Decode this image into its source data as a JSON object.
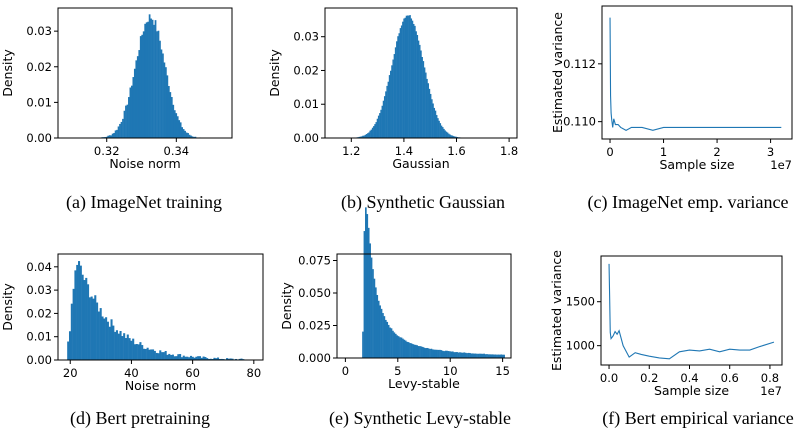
{
  "chart_data": [
    {
      "id": "a",
      "type": "histogram",
      "caption": "(a) ImageNet training",
      "xlabel": "Noise norm",
      "ylabel": "Density",
      "xlim": [
        0.306,
        0.356
      ],
      "ylim": [
        0,
        0.0365
      ],
      "xticks": [
        0.32,
        0.34
      ],
      "xtick_labels": [
        "0.32",
        "0.34"
      ],
      "yticks": [
        0,
        0.01,
        0.02,
        0.03
      ],
      "ytick_labels": [
        "0.00",
        "0.01",
        "0.02",
        "0.03"
      ],
      "distribution": {
        "kind": "gauss",
        "x0": 0.3155,
        "x1": 0.3495,
        "mu": 0.3325,
        "sigma": 0.0042,
        "peak": 0.034,
        "noise": 0.0014,
        "bins": 80
      }
    },
    {
      "id": "b",
      "type": "histogram",
      "caption": "(b) Synthetic Gaussian",
      "xlabel": "Gaussian",
      "ylabel": "Density",
      "xlim": [
        1.1,
        1.83
      ],
      "ylim": [
        0,
        0.0385
      ],
      "xticks": [
        1.2,
        1.4,
        1.6,
        1.8
      ],
      "xtick_labels": [
        "1.2",
        "1.4",
        "1.6",
        "1.8"
      ],
      "yticks": [
        0,
        0.01,
        0.02,
        0.03
      ],
      "ytick_labels": [
        "0.00",
        "0.01",
        "0.02",
        "0.03"
      ],
      "distribution": {
        "kind": "gauss",
        "x0": 1.2,
        "x1": 1.66,
        "mu": 1.415,
        "sigma": 0.06,
        "peak": 0.0365,
        "noise": 0.0004,
        "bins": 100
      }
    },
    {
      "id": "c",
      "type": "line",
      "caption": "(c) ImageNet emp. variance",
      "xlabel": "Sample size",
      "ylabel": "Estimated variance",
      "x_offset_label": "1e7",
      "xlim": [
        -0.15,
        3.4
      ],
      "ylim": [
        0.1094,
        0.114
      ],
      "xticks": [
        0,
        1,
        2,
        3
      ],
      "xtick_labels": [
        "0",
        "1",
        "2",
        "3"
      ],
      "yticks": [
        0.11,
        0.112
      ],
      "ytick_labels": [
        "0.110",
        "0.112"
      ],
      "x": [
        0.0,
        0.01,
        0.02,
        0.03,
        0.05,
        0.07,
        0.1,
        0.15,
        0.2,
        0.3,
        0.4,
        0.6,
        0.8,
        1.0,
        1.3,
        1.6,
        2.0,
        2.4,
        2.8,
        3.2
      ],
      "y": [
        0.1136,
        0.1109,
        0.1103,
        0.1101,
        0.1098,
        0.1101,
        0.1099,
        0.1099,
        0.1098,
        0.1097,
        0.1098,
        0.1098,
        0.1097,
        0.1098,
        0.1098,
        0.1098,
        0.1098,
        0.1098,
        0.1098,
        0.1098
      ]
    },
    {
      "id": "d",
      "type": "histogram",
      "caption": "(d) Bert pretraining",
      "xlabel": "Noise norm",
      "ylabel": "Density",
      "xlim": [
        16,
        83
      ],
      "ylim": [
        0,
        0.0455
      ],
      "xticks": [
        20,
        40,
        60,
        80
      ],
      "xtick_labels": [
        "20",
        "40",
        "60",
        "80"
      ],
      "yticks": [
        0,
        0.01,
        0.02,
        0.03,
        0.04
      ],
      "ytick_labels": [
        "0.00",
        "0.01",
        "0.02",
        "0.03",
        "0.04"
      ],
      "distribution": {
        "kind": "skew",
        "x0": 19,
        "x1": 78,
        "mode": 22.5,
        "rise": 2.5,
        "decay": 11,
        "peak": 0.042,
        "noise": 0.0035,
        "bins": 100
      }
    },
    {
      "id": "e",
      "type": "histogram",
      "caption": "(e) Synthetic Levy-stable",
      "xlabel": "Levy-stable",
      "ylabel": "Density",
      "xlim": [
        -0.8,
        15.8
      ],
      "ylim": [
        0,
        0.08
      ],
      "xticks": [
        0,
        5,
        10,
        15
      ],
      "xtick_labels": [
        "0",
        "5",
        "10",
        "15"
      ],
      "yticks": [
        0,
        0.025,
        0.05,
        0.075
      ],
      "ytick_labels": [
        "0.000",
        "0.025",
        "0.050",
        "0.075"
      ],
      "distribution": {
        "kind": "levy",
        "x0": 1.6,
        "x1": 15.2,
        "mode": 2.5,
        "peak": 0.077,
        "bins": 100
      }
    },
    {
      "id": "f",
      "type": "line",
      "caption": "(f) Bert empirical variance",
      "xlabel": "Sample size",
      "ylabel": "Estimated variance",
      "x_offset_label": "1e7",
      "xlim": [
        -0.04,
        0.86
      ],
      "ylim": [
        780,
        2020
      ],
      "xticks": [
        0,
        0.2,
        0.4,
        0.6,
        0.8
      ],
      "xtick_labels": [
        "0.0",
        "0.2",
        "0.4",
        "0.6",
        "0.8"
      ],
      "yticks": [
        1000,
        1500
      ],
      "ytick_labels": [
        "1000",
        "1500"
      ],
      "x": [
        0.0,
        0.003,
        0.006,
        0.01,
        0.02,
        0.03,
        0.04,
        0.05,
        0.07,
        0.1,
        0.13,
        0.16,
        0.2,
        0.25,
        0.3,
        0.35,
        0.4,
        0.45,
        0.5,
        0.55,
        0.6,
        0.65,
        0.7,
        0.75,
        0.82
      ],
      "y": [
        1930,
        1550,
        1150,
        1080,
        1110,
        1160,
        1130,
        1170,
        1000,
        870,
        920,
        900,
        880,
        860,
        850,
        930,
        950,
        940,
        960,
        930,
        960,
        950,
        950,
        990,
        1040
      ]
    }
  ]
}
